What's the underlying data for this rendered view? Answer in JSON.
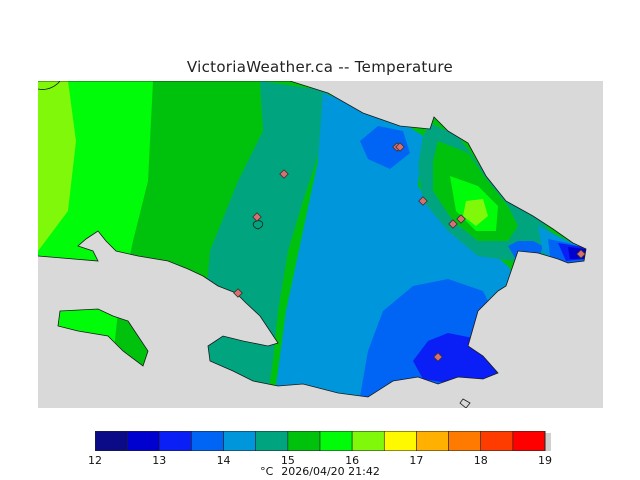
{
  "title": "VictoriaWeather.ca -- Temperature",
  "legend": {
    "ticks": [
      "12",
      "13",
      "14",
      "15",
      "16",
      "17",
      "18",
      "19"
    ],
    "colors": [
      "#0b0a87",
      "#0000cf",
      "#0a1ff5",
      "#0064f5",
      "#0096dc",
      "#00a57f",
      "#00c20d",
      "#00fc08",
      "#7ff80a",
      "#fff900",
      "#ffb000",
      "#ff7a00",
      "#ff3c00",
      "#ff0000"
    ],
    "unit": "°C",
    "timestamp": "2026/04/20 21:42"
  },
  "map": {
    "background_color": "#d9d9d9",
    "stations_count": 10
  }
}
